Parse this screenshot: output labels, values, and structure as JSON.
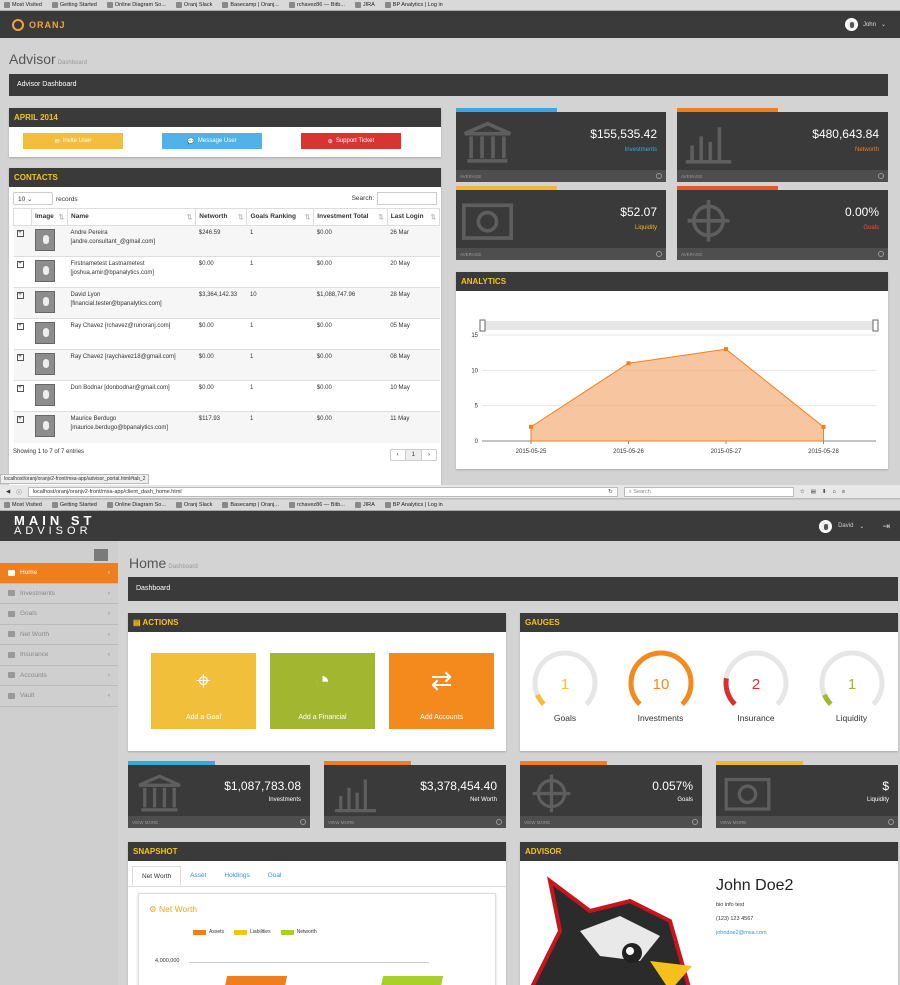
{
  "bookmarks": [
    "Most Visited",
    "Getting Started",
    "Online Diagram So...",
    "Oranj Slack",
    "Basecamp | Oranj...",
    "rchavez86 — Bitb...",
    "JIRA",
    "BP Analytics | Log in"
  ],
  "top_app": {
    "brand": "ORANJ",
    "user": "John",
    "page_title": "Advisor",
    "page_subtitle": "Dashboard",
    "breadcrumb": "Advisor Dashboard",
    "month_panel": {
      "title": "APRIL 2014",
      "buttons": [
        "Invite User",
        "Message User",
        "Support Ticket"
      ]
    },
    "contacts": {
      "title": "CONTACTS",
      "page_size": "10",
      "records_label": "records",
      "search_label": "Search:",
      "columns": [
        "Image",
        "Name",
        "Networth",
        "Goals Ranking",
        "Investment Total",
        "Last Login"
      ],
      "rows": [
        {
          "name": "Andre Pereira",
          "email": "[andre.consultant_@gmail.com]",
          "networth": "$246.59",
          "goals": "1",
          "investment": "$0.00",
          "login": "26 Mar"
        },
        {
          "name": "Firstnametest Lastnametest",
          "email": "[joshua.amir@bpanalytics.com]",
          "networth": "$0.00",
          "goals": "1",
          "investment": "$0.00",
          "login": "20 May"
        },
        {
          "name": "David Lyon",
          "email": "[financial.tester@bpanalytics.com]",
          "networth": "$3,364,142.33",
          "goals": "10",
          "investment": "$1,088,747.96",
          "login": "28 May"
        },
        {
          "name": "Ray Chavez [rchavez@runoranj.com]",
          "email": "",
          "networth": "$0.00",
          "goals": "1",
          "investment": "$0.00",
          "login": "05 May"
        },
        {
          "name": "Ray Chavez [raychavez18@gmail.com]",
          "email": "",
          "networth": "$0.00",
          "goals": "1",
          "investment": "$0.00",
          "login": "08 May"
        },
        {
          "name": "Don Bodnar [donbodnar@gmail.com]",
          "email": "",
          "networth": "$0.00",
          "goals": "1",
          "investment": "$0.00",
          "login": "10 May"
        },
        {
          "name": "Maurice Berdugo",
          "email": "[maurice.berdugo@bpanalytics.com]",
          "networth": "$117.93",
          "goals": "1",
          "investment": "$0.00",
          "login": "11 May"
        }
      ],
      "footer": "Showing 1 to 7 of 7 entries",
      "pager": [
        "‹",
        "1",
        "›"
      ]
    },
    "stats": [
      {
        "value": "$155,535.42",
        "label": "Investments",
        "foot": "AVERAGE",
        "color": "#3aa8e0",
        "label_color": "#3aa8e0",
        "icon": "bank-icon"
      },
      {
        "value": "$480,643.84",
        "label": "Networth",
        "foot": "AVERAGE",
        "color": "#f07e1c",
        "label_color": "#f07e1c",
        "icon": "bar-chart-icon"
      },
      {
        "value": "$52.07",
        "label": "Liquidity",
        "foot": "AVERAGE",
        "color": "#f2b534",
        "label_color": "#f2b534",
        "icon": "dollar-bill-icon"
      },
      {
        "value": "0.00%",
        "label": "Goals",
        "foot": "AVERAGE",
        "color": "#e2582a",
        "label_color": "#e2582a",
        "icon": "crosshair-icon"
      }
    ],
    "analytics": {
      "title": "ANALYTICS"
    },
    "status_url": "localhost/oranj/oranjv2-front/msa-app/advisor_portal.html#tab_2"
  },
  "url_bar": {
    "url": "localhost/oranj/oranjv2-front/msa-app/client_dash_home.html",
    "search_placeholder": "Search"
  },
  "bottom_app": {
    "brand_line1": "MAIN ST",
    "brand_line2": "ADVISOR",
    "user": "David",
    "sidebar": [
      {
        "label": "Home",
        "active": true
      },
      {
        "label": "Investments",
        "active": false
      },
      {
        "label": "Goals",
        "active": false
      },
      {
        "label": "Net Worth",
        "active": false
      },
      {
        "label": "Insurance",
        "active": false
      },
      {
        "label": "Accounts",
        "active": false
      },
      {
        "label": "Vault",
        "active": false
      }
    ],
    "page_title": "Home",
    "page_subtitle": "Dashboard",
    "breadcrumb": "Dashboard",
    "actions": {
      "title": "ACTIONS",
      "tiles": [
        {
          "label": "Add a Goal",
          "color": "#f2bf3b"
        },
        {
          "label": "Add a Financial",
          "color": "#a2b62f"
        },
        {
          "label": "Add Accounts",
          "color": "#f48a1e"
        }
      ]
    },
    "gauges": {
      "title": "GAUGES",
      "items": [
        {
          "value": "1",
          "label": "Goals",
          "color": "#f2bf3b",
          "fill": 0.08
        },
        {
          "value": "10",
          "label": "Investments",
          "color": "#f48a1e",
          "fill": 1.0
        },
        {
          "value": "2",
          "label": "Insurance",
          "color": "#d82f2f",
          "fill": 0.2
        },
        {
          "value": "1",
          "label": "Liquidity",
          "color": "#a2b62f",
          "fill": 0.08
        }
      ]
    },
    "stats": [
      {
        "value": "$1,087,783.08",
        "label": "Investments",
        "foot": "VIEW MORE",
        "color": "#3aa8e0",
        "icon": "bank-icon"
      },
      {
        "value": "$3,378,454.40",
        "label": "Net Worth",
        "foot": "VIEW MORE",
        "color": "#f07e1c",
        "icon": "bar-chart-icon"
      },
      {
        "value": "0.057%",
        "label": "Goals",
        "foot": "VIEW MORE",
        "color": "#f07e1c",
        "icon": "crosshair-icon"
      },
      {
        "value": "$",
        "label": "Liquidity",
        "foot": "VIEW MORE",
        "color": "#f2b534",
        "icon": "dollar-bill-icon"
      }
    ],
    "snapshot": {
      "title": "SNAPSHOT",
      "tabs": [
        "Net Worth",
        "Asset",
        "Holdings",
        "Goal"
      ],
      "chart_title": "Net Worth",
      "legend": [
        {
          "name": "Assets",
          "color": "#f07e1c"
        },
        {
          "name": "Liabilities",
          "color": "#f2c21d"
        },
        {
          "name": "Networth",
          "color": "#a8cf2a"
        }
      ],
      "y_tick": "4,000,000"
    },
    "advisor": {
      "title": "ADVISOR",
      "name": "John Doe2",
      "bio": "bio info test",
      "phone": "(123) 123 4567",
      "email": "johndoe2@msa.com"
    }
  },
  "chart_data": {
    "type": "area",
    "title": "ANALYTICS",
    "x": [
      "2015-05-25",
      "2015-05-26",
      "2015-05-27",
      "2015-05-28"
    ],
    "series": [
      {
        "values": [
          2,
          11,
          13,
          2
        ]
      }
    ],
    "ylim": [
      0,
      15
    ],
    "yticks": [
      0,
      5,
      10,
      15
    ],
    "color": "#f5a66f",
    "grid": true
  }
}
